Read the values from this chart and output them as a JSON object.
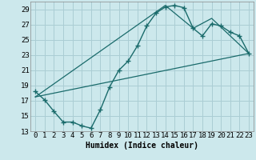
{
  "title": "",
  "xlabel": "Humidex (Indice chaleur)",
  "bg_color": "#cce8ec",
  "grid_color": "#aacdd4",
  "line_color": "#1a6b6b",
  "xlim": [
    -0.5,
    23.5
  ],
  "ylim": [
    13,
    30
  ],
  "xticks": [
    0,
    1,
    2,
    3,
    4,
    5,
    6,
    7,
    8,
    9,
    10,
    11,
    12,
    13,
    14,
    15,
    16,
    17,
    18,
    19,
    20,
    21,
    22,
    23
  ],
  "yticks": [
    13,
    15,
    17,
    19,
    21,
    23,
    25,
    27,
    29
  ],
  "line1_x": [
    0,
    1,
    2,
    3,
    4,
    5,
    6,
    7,
    8,
    9,
    10,
    11,
    12,
    13,
    14,
    15,
    16,
    17,
    18,
    19,
    20,
    21,
    22,
    23
  ],
  "line1_y": [
    18.2,
    17.1,
    15.6,
    14.2,
    14.2,
    13.7,
    13.4,
    15.8,
    18.8,
    21.0,
    22.2,
    24.2,
    26.8,
    28.5,
    29.3,
    29.5,
    29.2,
    26.5,
    25.5,
    27.1,
    26.8,
    26.0,
    25.5,
    23.2
  ],
  "line2_x": [
    0,
    23
  ],
  "line2_y": [
    17.5,
    23.2
  ],
  "line3_x": [
    0,
    14,
    17,
    19,
    23
  ],
  "line3_y": [
    17.5,
    29.5,
    26.5,
    27.8,
    23.2
  ],
  "tick_fontsize": 6.5,
  "xlabel_fontsize": 7.0
}
